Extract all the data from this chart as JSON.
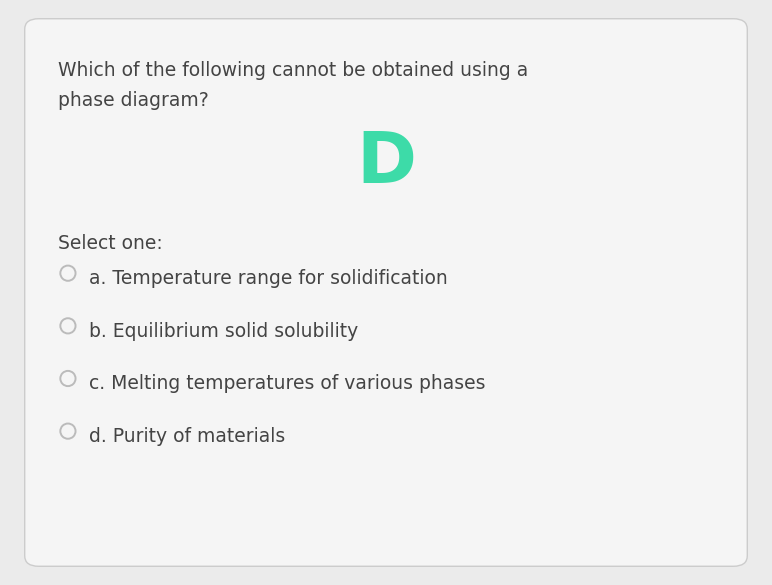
{
  "background_color": "#ebebeb",
  "card_color": "#f5f5f5",
  "card_edge_color": "#cccccc",
  "question_text_line1": "Which of the following cannot be obtained using a",
  "question_text_line2": "phase diagram?",
  "answer_letter": "D",
  "answer_color": "#3ddba8",
  "select_one_text": "Select one:",
  "options": [
    "a. Temperature range for solidification",
    "b. Equilibrium solid solubility",
    "c. Melting temperatures of various phases",
    "d. Purity of materials"
  ],
  "question_fontsize": 13.5,
  "answer_fontsize": 52,
  "select_one_fontsize": 13.5,
  "option_fontsize": 13.5,
  "text_color": "#444444",
  "radio_edge_color": "#bbbbbb",
  "radio_fill": "#f5f5f5",
  "fig_width": 7.72,
  "fig_height": 5.85,
  "dpi": 100
}
